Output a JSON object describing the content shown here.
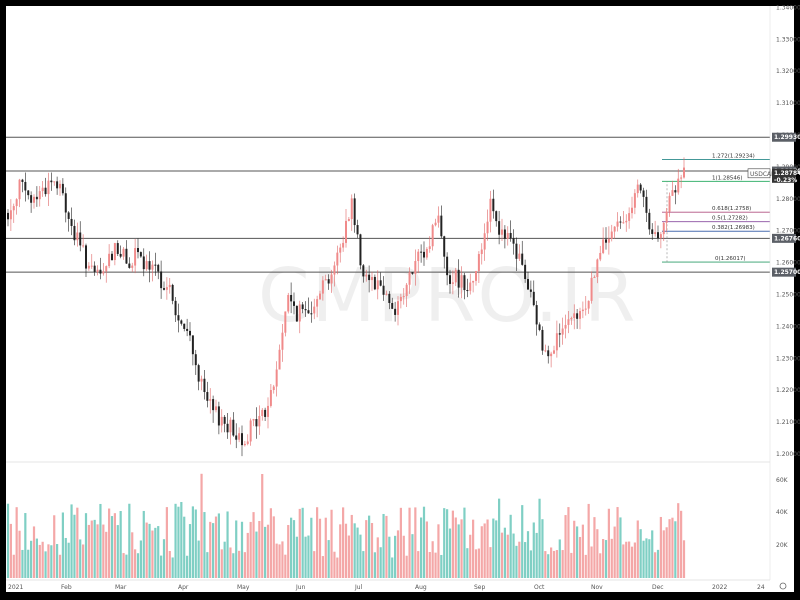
{
  "chart_data": {
    "type": "candlestick",
    "symbol": "USDCAD",
    "watermark": "CMPRO.IR",
    "current_price": "1.28784",
    "change_pct": "-0.23%",
    "ylim": [
      1.195,
      1.345
    ],
    "y_ticks": [
      "1.34000",
      "1.33000",
      "1.32000",
      "1.31000",
      "1.30000",
      "1.29000",
      "1.28000",
      "1.27000",
      "1.26000",
      "1.25000",
      "1.24000",
      "1.23000",
      "1.22000",
      "1.21000",
      "1.20000"
    ],
    "volume_ticks": [
      "60K",
      "40K",
      "20K"
    ],
    "x_tick_labels": [
      "2021",
      "Feb",
      "Mar",
      "Apr",
      "May",
      "Jun",
      "Jul",
      "Aug",
      "Sep",
      "Oct",
      "Nov",
      "Dec",
      "2022",
      "24"
    ],
    "horizontal_levels": [
      {
        "value": 1.2993,
        "label": "1.29930"
      },
      {
        "value": 1.2887,
        "label": "1.28870"
      },
      {
        "value": 1.2676,
        "label": "1.26760"
      },
      {
        "value": 1.257,
        "label": "1.25700"
      }
    ],
    "fibonacci": [
      {
        "ratio": "1.272",
        "value": 1.29234,
        "label": "1.272(1.29234)"
      },
      {
        "ratio": "1",
        "value": 1.28546,
        "label": "1(1.28546)"
      },
      {
        "ratio": "0.618",
        "value": 1.2758,
        "label": "0.618(1.2758)"
      },
      {
        "ratio": "0.5",
        "value": 1.27282,
        "label": "0.5(1.27282)"
      },
      {
        "ratio": "0.382",
        "value": 1.26983,
        "label": "0.382(1.26983)"
      },
      {
        "ratio": "0",
        "value": 1.26017,
        "label": "0(1.26017)"
      }
    ],
    "close_path": [
      1.273,
      1.285,
      1.279,
      1.282,
      1.286,
      1.282,
      1.27,
      1.263,
      1.255,
      1.257,
      1.266,
      1.26,
      1.262,
      1.258,
      1.256,
      1.252,
      1.24,
      1.236,
      1.221,
      1.213,
      1.211,
      1.207,
      1.205,
      1.21,
      1.213,
      1.225,
      1.249,
      1.244,
      1.245,
      1.252,
      1.256,
      1.264,
      1.28,
      1.258,
      1.255,
      1.252,
      1.245,
      1.251,
      1.26,
      1.263,
      1.276,
      1.256,
      1.255,
      1.253,
      1.262,
      1.281,
      1.268,
      1.266,
      1.258,
      1.245,
      1.231,
      1.236,
      1.239,
      1.242,
      1.248,
      1.262,
      1.268,
      1.272,
      1.278,
      1.283,
      1.266,
      1.273,
      1.282,
      1.288
    ]
  },
  "toolbar": {
    "settings_icon": "gear-icon"
  }
}
